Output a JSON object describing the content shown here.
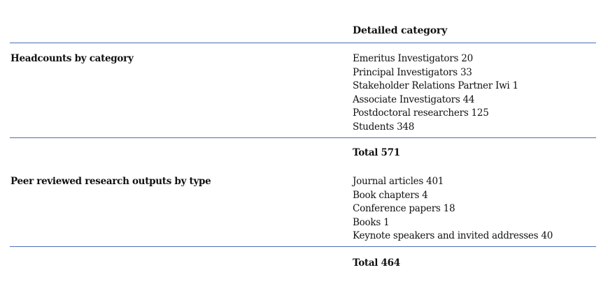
{
  "header": {
    "detailed_category": "Detailed category"
  },
  "sections": [
    {
      "label": "Headcounts by category",
      "items": [
        "Emeritus Investigators 20",
        "Principal Investigators 33",
        "Stakeholder Relations Partner Iwi 1",
        "Associate Investigators 44",
        "Postdoctoral researchers 125",
        "Students 348"
      ],
      "total": "Total 571"
    },
    {
      "label": "Peer reviewed research outputs by type",
      "items": [
        "Journal articles 401",
        "Book chapters 4",
        "Conference papers 18",
        "Books 1",
        "Keynote speakers and invited addresses 40"
      ],
      "total": "Total 464"
    }
  ],
  "colors": {
    "rule": "#4a6fb5",
    "text": "#111111"
  }
}
